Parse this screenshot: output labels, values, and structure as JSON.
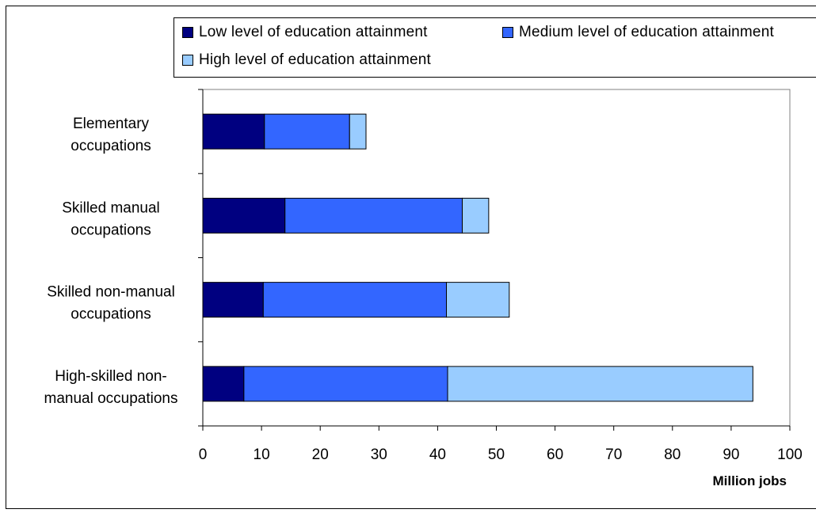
{
  "chart_data": {
    "type": "bar",
    "orientation": "horizontal",
    "stacked": true,
    "categories": [
      "Elementary occupations",
      "Skilled manual occupations",
      "Skilled non-manual occupations",
      "High-skilled non-manual occupations"
    ],
    "category_lines": [
      [
        "Elementary",
        "occupations"
      ],
      [
        "Skilled manual",
        "occupations"
      ],
      [
        "Skilled non-manual",
        "occupations"
      ],
      [
        "High-skilled non-",
        "manual occupations"
      ]
    ],
    "series": [
      {
        "name": "Low level of education attainment",
        "color": "#000080",
        "values": [
          10.5,
          14,
          10.3,
          7
        ]
      },
      {
        "name": "Medium level of education attainment",
        "color": "#3366FF",
        "values": [
          14.5,
          30.2,
          31.2,
          34.7
        ]
      },
      {
        "name": "High level of education attainment",
        "color": "#99CCFF",
        "values": [
          2.8,
          4.5,
          10.7,
          52
        ]
      }
    ],
    "xlabel": "Million jobs",
    "xlim": [
      0,
      100
    ],
    "xticks": [
      0,
      10,
      20,
      30,
      40,
      50,
      60,
      70,
      80,
      90,
      100
    ],
    "grid": false,
    "legend_position": "top"
  }
}
